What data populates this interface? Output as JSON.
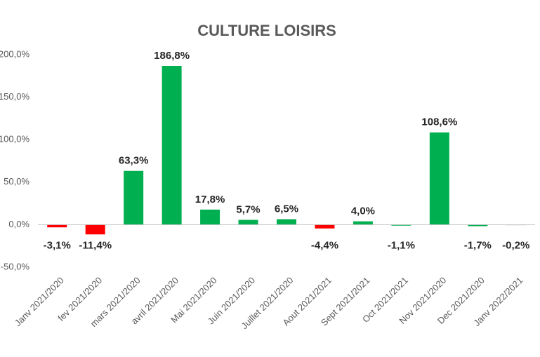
{
  "chart_data": {
    "type": "bar",
    "title": "CULTURE LOISIRS",
    "categories": [
      "Janv 2021/2020",
      "fev 2021/2020",
      "mars 2021/2020",
      "avril 2021/2020",
      "Mai 2021/2020",
      "Juin 2021/2020",
      "Juillet 2021/2020",
      "Aout 2021/2021",
      "Sept 2021/2021",
      "Oct 2021/2021",
      "Nov 2021/2020",
      "Dec 2021/2020",
      "Janv 2022/2021"
    ],
    "values": [
      -3.1,
      -11.4,
      63.3,
      186.8,
      17.8,
      5.7,
      6.5,
      -4.4,
      4.0,
      -1.1,
      108.6,
      -1.7,
      -0.2
    ],
    "value_labels": [
      "-3,1%",
      "-11,4%",
      "63,3%",
      "186,8%",
      "17,8%",
      "5,7%",
      "6,5%",
      "-4,4%",
      "4,0%",
      "-1,1%",
      "108,6%",
      "-1,7%",
      "-0,2%"
    ],
    "colors": [
      "#ff0000",
      "#ff0000",
      "#00b050",
      "#00b050",
      "#00b050",
      "#00b050",
      "#00b050",
      "#ff0000",
      "#00b050",
      "#00b050",
      "#00b050",
      "#00b050",
      "#e0e0e0"
    ],
    "ylim": [
      -50,
      200
    ],
    "yticks": [
      {
        "value": -50,
        "label": "-50,0%"
      },
      {
        "value": 0,
        "label": "0,0%"
      },
      {
        "value": 50,
        "label": "50,0%"
      },
      {
        "value": 100,
        "label": "100,0%"
      },
      {
        "value": 150,
        "label": "150,0%"
      },
      {
        "value": 200,
        "label": "200,0%"
      }
    ],
    "grid": false
  }
}
